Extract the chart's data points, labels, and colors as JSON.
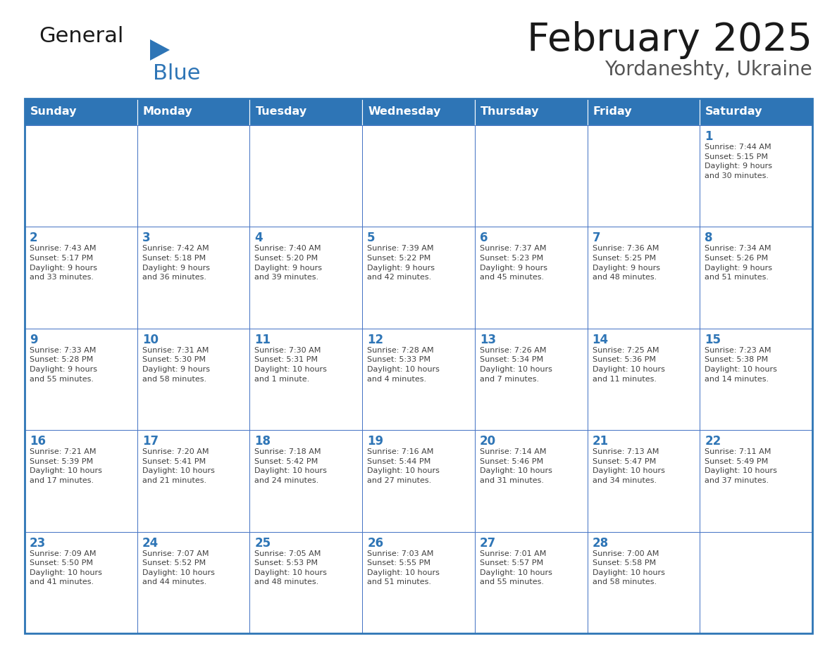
{
  "title": "February 2025",
  "subtitle": "Yordaneshty, Ukraine",
  "header_bg": "#2E75B6",
  "header_text_color": "#FFFFFF",
  "cell_bg": "#FFFFFF",
  "border_color": "#2E75B6",
  "cell_border_color": "#4472C4",
  "text_color": "#404040",
  "day_number_color": "#2E75B6",
  "days_of_week": [
    "Sunday",
    "Monday",
    "Tuesday",
    "Wednesday",
    "Thursday",
    "Friday",
    "Saturday"
  ],
  "weeks": [
    [
      {
        "day": "",
        "info": ""
      },
      {
        "day": "",
        "info": ""
      },
      {
        "day": "",
        "info": ""
      },
      {
        "day": "",
        "info": ""
      },
      {
        "day": "",
        "info": ""
      },
      {
        "day": "",
        "info": ""
      },
      {
        "day": "1",
        "info": "Sunrise: 7:44 AM\nSunset: 5:15 PM\nDaylight: 9 hours\nand 30 minutes."
      }
    ],
    [
      {
        "day": "2",
        "info": "Sunrise: 7:43 AM\nSunset: 5:17 PM\nDaylight: 9 hours\nand 33 minutes."
      },
      {
        "day": "3",
        "info": "Sunrise: 7:42 AM\nSunset: 5:18 PM\nDaylight: 9 hours\nand 36 minutes."
      },
      {
        "day": "4",
        "info": "Sunrise: 7:40 AM\nSunset: 5:20 PM\nDaylight: 9 hours\nand 39 minutes."
      },
      {
        "day": "5",
        "info": "Sunrise: 7:39 AM\nSunset: 5:22 PM\nDaylight: 9 hours\nand 42 minutes."
      },
      {
        "day": "6",
        "info": "Sunrise: 7:37 AM\nSunset: 5:23 PM\nDaylight: 9 hours\nand 45 minutes."
      },
      {
        "day": "7",
        "info": "Sunrise: 7:36 AM\nSunset: 5:25 PM\nDaylight: 9 hours\nand 48 minutes."
      },
      {
        "day": "8",
        "info": "Sunrise: 7:34 AM\nSunset: 5:26 PM\nDaylight: 9 hours\nand 51 minutes."
      }
    ],
    [
      {
        "day": "9",
        "info": "Sunrise: 7:33 AM\nSunset: 5:28 PM\nDaylight: 9 hours\nand 55 minutes."
      },
      {
        "day": "10",
        "info": "Sunrise: 7:31 AM\nSunset: 5:30 PM\nDaylight: 9 hours\nand 58 minutes."
      },
      {
        "day": "11",
        "info": "Sunrise: 7:30 AM\nSunset: 5:31 PM\nDaylight: 10 hours\nand 1 minute."
      },
      {
        "day": "12",
        "info": "Sunrise: 7:28 AM\nSunset: 5:33 PM\nDaylight: 10 hours\nand 4 minutes."
      },
      {
        "day": "13",
        "info": "Sunrise: 7:26 AM\nSunset: 5:34 PM\nDaylight: 10 hours\nand 7 minutes."
      },
      {
        "day": "14",
        "info": "Sunrise: 7:25 AM\nSunset: 5:36 PM\nDaylight: 10 hours\nand 11 minutes."
      },
      {
        "day": "15",
        "info": "Sunrise: 7:23 AM\nSunset: 5:38 PM\nDaylight: 10 hours\nand 14 minutes."
      }
    ],
    [
      {
        "day": "16",
        "info": "Sunrise: 7:21 AM\nSunset: 5:39 PM\nDaylight: 10 hours\nand 17 minutes."
      },
      {
        "day": "17",
        "info": "Sunrise: 7:20 AM\nSunset: 5:41 PM\nDaylight: 10 hours\nand 21 minutes."
      },
      {
        "day": "18",
        "info": "Sunrise: 7:18 AM\nSunset: 5:42 PM\nDaylight: 10 hours\nand 24 minutes."
      },
      {
        "day": "19",
        "info": "Sunrise: 7:16 AM\nSunset: 5:44 PM\nDaylight: 10 hours\nand 27 minutes."
      },
      {
        "day": "20",
        "info": "Sunrise: 7:14 AM\nSunset: 5:46 PM\nDaylight: 10 hours\nand 31 minutes."
      },
      {
        "day": "21",
        "info": "Sunrise: 7:13 AM\nSunset: 5:47 PM\nDaylight: 10 hours\nand 34 minutes."
      },
      {
        "day": "22",
        "info": "Sunrise: 7:11 AM\nSunset: 5:49 PM\nDaylight: 10 hours\nand 37 minutes."
      }
    ],
    [
      {
        "day": "23",
        "info": "Sunrise: 7:09 AM\nSunset: 5:50 PM\nDaylight: 10 hours\nand 41 minutes."
      },
      {
        "day": "24",
        "info": "Sunrise: 7:07 AM\nSunset: 5:52 PM\nDaylight: 10 hours\nand 44 minutes."
      },
      {
        "day": "25",
        "info": "Sunrise: 7:05 AM\nSunset: 5:53 PM\nDaylight: 10 hours\nand 48 minutes."
      },
      {
        "day": "26",
        "info": "Sunrise: 7:03 AM\nSunset: 5:55 PM\nDaylight: 10 hours\nand 51 minutes."
      },
      {
        "day": "27",
        "info": "Sunrise: 7:01 AM\nSunset: 5:57 PM\nDaylight: 10 hours\nand 55 minutes."
      },
      {
        "day": "28",
        "info": "Sunrise: 7:00 AM\nSunset: 5:58 PM\nDaylight: 10 hours\nand 58 minutes."
      },
      {
        "day": "",
        "info": ""
      }
    ]
  ],
  "logo_general_color": "#1a1a1a",
  "logo_blue_color": "#2E75B6",
  "figsize": [
    11.88,
    9.18
  ],
  "dpi": 100
}
